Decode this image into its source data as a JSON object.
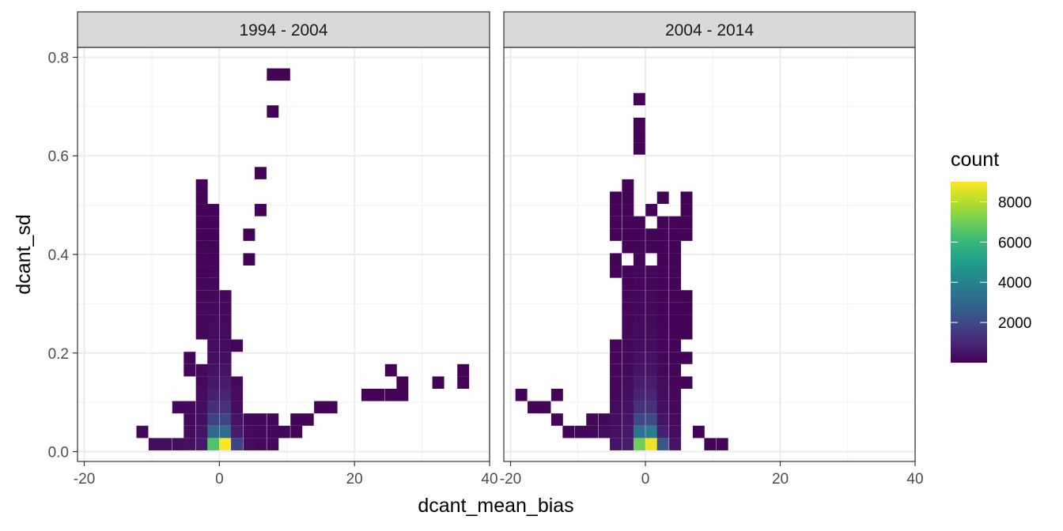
{
  "chart_data": {
    "type": "heatmap",
    "xlabel": "dcant_mean_bias",
    "ylabel": "dcant_sd",
    "xlim": [
      -21,
      40
    ],
    "ylim": [
      -0.02,
      0.82
    ],
    "x_ticks": [
      -20,
      0,
      20,
      40
    ],
    "x_tick_labels": [
      "-20",
      "0",
      "20",
      "40"
    ],
    "y_ticks": [
      0.0,
      0.2,
      0.4,
      0.6,
      0.8
    ],
    "y_tick_labels": [
      "0.0",
      "0.2",
      "0.4",
      "0.6",
      "0.8"
    ],
    "bin_width_x": 1.75,
    "bin_width_y": 0.025,
    "grid": true,
    "legend": {
      "title": "count",
      "placement": "right",
      "ticks": [
        2000,
        4000,
        6000,
        8000
      ],
      "tick_labels": [
        "2000",
        "4000",
        "6000",
        "8000"
      ],
      "min": 1,
      "max": 9000,
      "colormap": [
        "#440154",
        "#482878",
        "#3e4989",
        "#31688e",
        "#26828e",
        "#1f9e89",
        "#35b779",
        "#6ece58",
        "#b5de2b",
        "#fde725"
      ]
    },
    "panels": [
      {
        "label": "1994 - 2004",
        "bins": [
          [
            -11.4,
            0.04,
            200
          ],
          [
            -9.6,
            0.015,
            300
          ],
          [
            -7.9,
            0.015,
            300
          ],
          [
            -6.1,
            0.015,
            300
          ],
          [
            -4.4,
            0.015,
            400
          ],
          [
            -2.6,
            0.015,
            600
          ],
          [
            -0.9,
            0.015,
            6500
          ],
          [
            0.9,
            0.015,
            9000
          ],
          [
            2.6,
            0.015,
            1800
          ],
          [
            4.4,
            0.015,
            300
          ],
          [
            6.1,
            0.015,
            200
          ],
          [
            7.9,
            0.015,
            150
          ],
          [
            -4.4,
            0.04,
            250
          ],
          [
            -2.6,
            0.04,
            500
          ],
          [
            -0.9,
            0.04,
            3000
          ],
          [
            0.9,
            0.04,
            3200
          ],
          [
            2.6,
            0.04,
            700
          ],
          [
            4.4,
            0.04,
            250
          ],
          [
            6.1,
            0.04,
            200
          ],
          [
            7.9,
            0.04,
            150
          ],
          [
            9.6,
            0.04,
            120
          ],
          [
            11.4,
            0.04,
            100
          ],
          [
            -4.4,
            0.065,
            200
          ],
          [
            -2.6,
            0.065,
            350
          ],
          [
            -0.9,
            0.065,
            1800
          ],
          [
            0.9,
            0.065,
            1900
          ],
          [
            2.6,
            0.065,
            500
          ],
          [
            4.4,
            0.065,
            200
          ],
          [
            6.1,
            0.065,
            150
          ],
          [
            7.9,
            0.065,
            120
          ],
          [
            11.4,
            0.065,
            100
          ],
          [
            13.1,
            0.065,
            80
          ],
          [
            -6.1,
            0.09,
            150
          ],
          [
            -4.4,
            0.09,
            180
          ],
          [
            -2.6,
            0.09,
            300
          ],
          [
            -0.9,
            0.09,
            1200
          ],
          [
            0.9,
            0.09,
            1300
          ],
          [
            2.6,
            0.09,
            300
          ],
          [
            14.9,
            0.09,
            80
          ],
          [
            16.6,
            0.09,
            80
          ],
          [
            -2.6,
            0.115,
            250
          ],
          [
            -0.9,
            0.115,
            800
          ],
          [
            0.9,
            0.115,
            900
          ],
          [
            2.6,
            0.115,
            250
          ],
          [
            21.9,
            0.115,
            60
          ],
          [
            23.6,
            0.115,
            60
          ],
          [
            25.4,
            0.115,
            60
          ],
          [
            27.1,
            0.115,
            60
          ],
          [
            -2.6,
            0.14,
            200
          ],
          [
            -0.9,
            0.14,
            600
          ],
          [
            0.9,
            0.14,
            700
          ],
          [
            2.6,
            0.14,
            200
          ],
          [
            27.1,
            0.14,
            60
          ],
          [
            32.4,
            0.14,
            60
          ],
          [
            36.1,
            0.14,
            60
          ],
          [
            -4.4,
            0.165,
            120
          ],
          [
            -2.6,
            0.165,
            180
          ],
          [
            -0.9,
            0.165,
            450
          ],
          [
            0.9,
            0.165,
            500
          ],
          [
            25.4,
            0.165,
            60
          ],
          [
            36.1,
            0.165,
            60
          ],
          [
            -4.4,
            0.19,
            120
          ],
          [
            -0.9,
            0.19,
            350
          ],
          [
            0.9,
            0.19,
            350
          ],
          [
            -0.9,
            0.215,
            300
          ],
          [
            0.9,
            0.215,
            300
          ],
          [
            2.6,
            0.215,
            120
          ],
          [
            -2.6,
            0.24,
            200
          ],
          [
            -0.9,
            0.24,
            250
          ],
          [
            0.9,
            0.24,
            250
          ],
          [
            -2.6,
            0.265,
            180
          ],
          [
            -0.9,
            0.265,
            220
          ],
          [
            0.9,
            0.265,
            220
          ],
          [
            -2.6,
            0.29,
            180
          ],
          [
            -0.9,
            0.29,
            200
          ],
          [
            0.9,
            0.29,
            200
          ],
          [
            -2.6,
            0.315,
            160
          ],
          [
            -0.9,
            0.315,
            180
          ],
          [
            0.9,
            0.315,
            180
          ],
          [
            -2.6,
            0.34,
            150
          ],
          [
            -0.9,
            0.34,
            160
          ],
          [
            -2.6,
            0.365,
            140
          ],
          [
            -0.9,
            0.365,
            150
          ],
          [
            -2.6,
            0.39,
            130
          ],
          [
            -0.9,
            0.39,
            140
          ],
          [
            4.4,
            0.39,
            60
          ],
          [
            -2.6,
            0.415,
            120
          ],
          [
            -0.9,
            0.415,
            120
          ],
          [
            -2.6,
            0.44,
            110
          ],
          [
            -0.9,
            0.44,
            110
          ],
          [
            4.4,
            0.44,
            60
          ],
          [
            -2.6,
            0.465,
            100
          ],
          [
            -0.9,
            0.465,
            100
          ],
          [
            -2.6,
            0.49,
            90
          ],
          [
            -0.9,
            0.49,
            90
          ],
          [
            6.1,
            0.49,
            60
          ],
          [
            -2.6,
            0.515,
            80
          ],
          [
            -2.6,
            0.54,
            70
          ],
          [
            6.1,
            0.565,
            60
          ],
          [
            7.9,
            0.69,
            60
          ],
          [
            7.9,
            0.765,
            60
          ],
          [
            9.6,
            0.765,
            60
          ]
        ]
      },
      {
        "label": "2004 - 2014",
        "bins": [
          [
            -4.4,
            0.015,
            500
          ],
          [
            -2.6,
            0.015,
            700
          ],
          [
            -0.9,
            0.015,
            7000
          ],
          [
            0.9,
            0.015,
            8800
          ],
          [
            2.6,
            0.015,
            2500
          ],
          [
            4.4,
            0.015,
            500
          ],
          [
            9.6,
            0.015,
            100
          ],
          [
            11.4,
            0.015,
            100
          ],
          [
            -11.4,
            0.04,
            100
          ],
          [
            -9.6,
            0.04,
            150
          ],
          [
            -7.9,
            0.04,
            200
          ],
          [
            -6.1,
            0.04,
            250
          ],
          [
            -4.4,
            0.04,
            400
          ],
          [
            -2.6,
            0.04,
            600
          ],
          [
            -0.9,
            0.04,
            3500
          ],
          [
            0.9,
            0.04,
            3800
          ],
          [
            2.6,
            0.04,
            800
          ],
          [
            4.4,
            0.04,
            300
          ],
          [
            7.9,
            0.04,
            100
          ],
          [
            -13.1,
            0.065,
            100
          ],
          [
            -7.9,
            0.065,
            150
          ],
          [
            -6.1,
            0.065,
            150
          ],
          [
            -4.4,
            0.065,
            300
          ],
          [
            -2.6,
            0.065,
            500
          ],
          [
            -0.9,
            0.065,
            2000
          ],
          [
            0.9,
            0.065,
            2100
          ],
          [
            2.6,
            0.065,
            500
          ],
          [
            4.4,
            0.065,
            250
          ],
          [
            -16.6,
            0.09,
            100
          ],
          [
            -14.9,
            0.09,
            100
          ],
          [
            -4.4,
            0.09,
            250
          ],
          [
            -2.6,
            0.09,
            400
          ],
          [
            -0.9,
            0.09,
            1300
          ],
          [
            0.9,
            0.09,
            1300
          ],
          [
            2.6,
            0.09,
            350
          ],
          [
            4.4,
            0.09,
            200
          ],
          [
            -18.4,
            0.115,
            100
          ],
          [
            -13.1,
            0.115,
            100
          ],
          [
            -4.4,
            0.115,
            200
          ],
          [
            -2.6,
            0.115,
            300
          ],
          [
            -0.9,
            0.115,
            900
          ],
          [
            0.9,
            0.115,
            900
          ],
          [
            2.6,
            0.115,
            300
          ],
          [
            4.4,
            0.115,
            180
          ],
          [
            -4.4,
            0.14,
            180
          ],
          [
            -2.6,
            0.14,
            250
          ],
          [
            -0.9,
            0.14,
            700
          ],
          [
            0.9,
            0.14,
            700
          ],
          [
            2.6,
            0.14,
            250
          ],
          [
            4.4,
            0.14,
            150
          ],
          [
            6.1,
            0.14,
            80
          ],
          [
            -4.4,
            0.165,
            150
          ],
          [
            -2.6,
            0.165,
            200
          ],
          [
            -0.9,
            0.165,
            500
          ],
          [
            0.9,
            0.165,
            500
          ],
          [
            2.6,
            0.165,
            200
          ],
          [
            4.4,
            0.165,
            120
          ],
          [
            -4.4,
            0.19,
            130
          ],
          [
            -2.6,
            0.19,
            180
          ],
          [
            -0.9,
            0.19,
            400
          ],
          [
            0.9,
            0.19,
            400
          ],
          [
            2.6,
            0.19,
            150
          ],
          [
            4.4,
            0.19,
            100
          ],
          [
            6.1,
            0.19,
            80
          ],
          [
            -4.4,
            0.215,
            120
          ],
          [
            -2.6,
            0.215,
            160
          ],
          [
            -0.9,
            0.215,
            300
          ],
          [
            0.9,
            0.215,
            300
          ],
          [
            2.6,
            0.215,
            130
          ],
          [
            4.4,
            0.215,
            100
          ],
          [
            -2.6,
            0.24,
            150
          ],
          [
            -0.9,
            0.24,
            250
          ],
          [
            0.9,
            0.24,
            250
          ],
          [
            2.6,
            0.24,
            120
          ],
          [
            4.4,
            0.24,
            90
          ],
          [
            6.1,
            0.24,
            70
          ],
          [
            -2.6,
            0.265,
            140
          ],
          [
            -0.9,
            0.265,
            220
          ],
          [
            0.9,
            0.265,
            220
          ],
          [
            2.6,
            0.265,
            110
          ],
          [
            4.4,
            0.265,
            90
          ],
          [
            6.1,
            0.265,
            70
          ],
          [
            -2.6,
            0.29,
            130
          ],
          [
            -0.9,
            0.29,
            200
          ],
          [
            0.9,
            0.29,
            200
          ],
          [
            2.6,
            0.29,
            100
          ],
          [
            4.4,
            0.29,
            80
          ],
          [
            6.1,
            0.29,
            70
          ],
          [
            -2.6,
            0.315,
            120
          ],
          [
            -0.9,
            0.315,
            180
          ],
          [
            0.9,
            0.315,
            180
          ],
          [
            2.6,
            0.315,
            100
          ],
          [
            4.4,
            0.315,
            80
          ],
          [
            6.1,
            0.315,
            70
          ],
          [
            -2.6,
            0.34,
            110
          ],
          [
            -0.9,
            0.34,
            160
          ],
          [
            0.9,
            0.34,
            160
          ],
          [
            2.6,
            0.34,
            90
          ],
          [
            4.4,
            0.34,
            80
          ],
          [
            -4.4,
            0.365,
            90
          ],
          [
            -2.6,
            0.365,
            100
          ],
          [
            -0.9,
            0.365,
            150
          ],
          [
            0.9,
            0.365,
            150
          ],
          [
            2.6,
            0.365,
            90
          ],
          [
            4.4,
            0.365,
            80
          ],
          [
            -4.4,
            0.39,
            90
          ],
          [
            -0.9,
            0.39,
            140
          ],
          [
            2.6,
            0.39,
            90
          ],
          [
            4.4,
            0.39,
            80
          ],
          [
            -2.6,
            0.415,
            90
          ],
          [
            -0.9,
            0.415,
            120
          ],
          [
            0.9,
            0.415,
            110
          ],
          [
            2.6,
            0.415,
            90
          ],
          [
            4.4,
            0.415,
            80
          ],
          [
            -4.4,
            0.44,
            90
          ],
          [
            -2.6,
            0.44,
            100
          ],
          [
            -0.9,
            0.44,
            110
          ],
          [
            0.9,
            0.44,
            100
          ],
          [
            2.6,
            0.44,
            90
          ],
          [
            4.4,
            0.44,
            80
          ],
          [
            6.1,
            0.44,
            70
          ],
          [
            -4.4,
            0.465,
            80
          ],
          [
            -2.6,
            0.465,
            90
          ],
          [
            -0.9,
            0.465,
            100
          ],
          [
            2.6,
            0.465,
            80
          ],
          [
            4.4,
            0.465,
            80
          ],
          [
            6.1,
            0.465,
            70
          ],
          [
            -4.4,
            0.49,
            80
          ],
          [
            -2.6,
            0.49,
            80
          ],
          [
            0.9,
            0.49,
            70
          ],
          [
            6.1,
            0.49,
            70
          ],
          [
            -4.4,
            0.515,
            70
          ],
          [
            -2.6,
            0.515,
            70
          ],
          [
            2.6,
            0.515,
            70
          ],
          [
            6.1,
            0.515,
            70
          ],
          [
            -2.6,
            0.54,
            60
          ],
          [
            -0.9,
            0.615,
            60
          ],
          [
            -0.9,
            0.64,
            60
          ],
          [
            -0.9,
            0.665,
            60
          ],
          [
            -0.9,
            0.715,
            60
          ]
        ]
      }
    ]
  }
}
